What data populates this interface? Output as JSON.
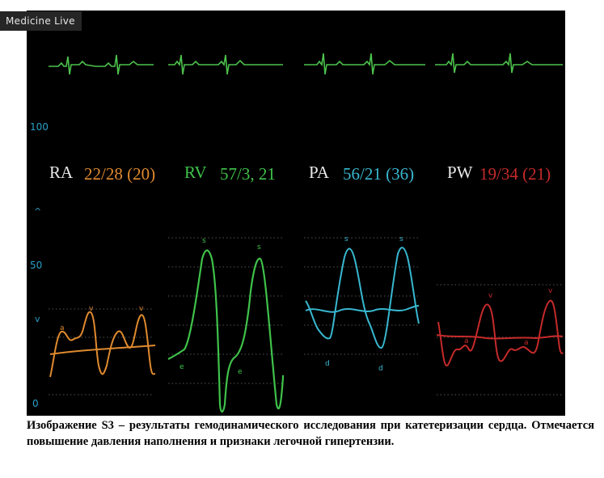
{
  "watermark": "Medicine Live",
  "scale": {
    "top": "100",
    "mid": "50",
    "bottom": "0",
    "up_arrow": "^",
    "down_arrow": "v"
  },
  "channels": [
    {
      "name": "RA",
      "value": "22/28 (20)",
      "color": "#e08a2e"
    },
    {
      "name": "RV",
      "value": "57/3, 21",
      "color": "#3fc24a"
    },
    {
      "name": "PA",
      "value": "56/21 (36)",
      "color": "#38b8d0"
    },
    {
      "name": "PW",
      "value": "19/34 (21)",
      "color": "#c62a2a"
    }
  ],
  "wave_labels": {
    "ra_a": "a",
    "ra_v1": "v",
    "ra_v2": "v",
    "rv_s1": "s",
    "rv_s2": "s",
    "rv_e1": "e",
    "rv_e2": "e",
    "pa_s1": "s",
    "pa_s2": "s",
    "pa_d1": "d",
    "pa_d2": "d",
    "pw_v1": "v",
    "pw_v2": "v",
    "pw_a1": "a",
    "pw_a2": "a"
  },
  "colors": {
    "ecg": "#4cc24c",
    "scale": "#2aa0c8",
    "name_text": "#e8e8e8",
    "monitor_bg": "#000000"
  },
  "caption": "Изображение S3 – результаты гемодинамического исследования при катетеризации сердца. Отмечается повышение давления наполнения и признаки легочной гипертензии."
}
